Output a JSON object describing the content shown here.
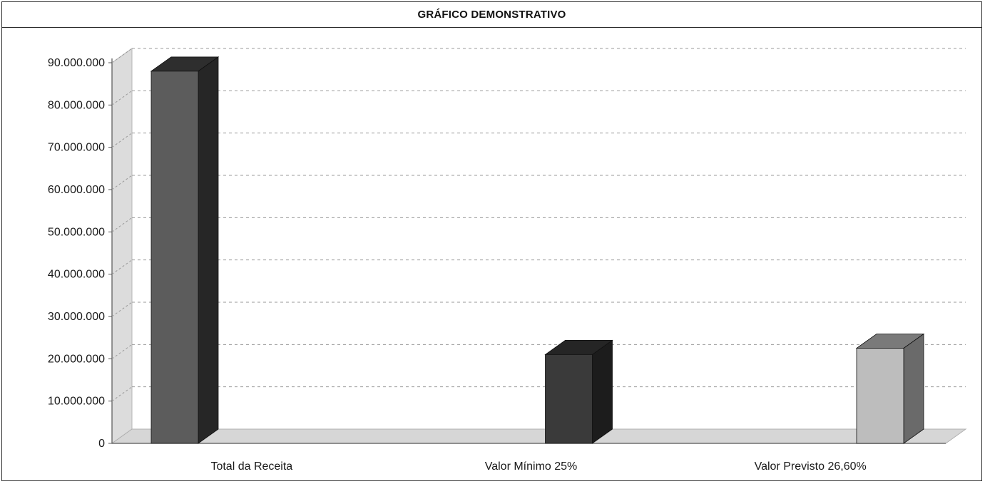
{
  "chart_data": {
    "type": "bar",
    "title": "GRÁFICO DEMONSTRATIVO",
    "categories": [
      "Total da Receita",
      "Valor Mínimo 25%",
      "Valor Previsto 26,60%"
    ],
    "values": [
      88000000,
      21000000,
      22500000
    ],
    "ylim": [
      0,
      90000000
    ],
    "ytick_step": 10000000,
    "y_tick_labels": [
      "0",
      "10.000.000",
      "20.000.000",
      "30.000.000",
      "40.000.000",
      "50.000.000",
      "60.000.000",
      "70.000.000",
      "80.000.000",
      "90.000.000"
    ],
    "grid": true,
    "legend": "none",
    "style": "3d-column",
    "bar_colors": [
      "#5c5c5c",
      "#3a3a3a",
      "#bdbdbd"
    ],
    "bar_side_colors": [
      "#262626",
      "#1c1c1c",
      "#6a6a6a"
    ],
    "bar_top_colors": [
      "#2e2e2e",
      "#252525",
      "#7a7a7a"
    ],
    "wall_color": "#dcdcdc",
    "floor_color": "#d6d6d6",
    "grid_color": "#9a9a9a"
  }
}
